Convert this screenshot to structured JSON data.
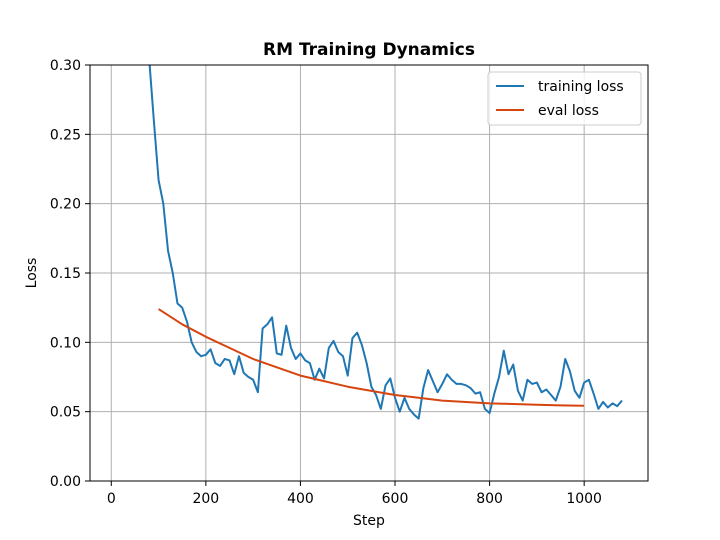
{
  "chart_data": {
    "type": "line",
    "title": "RM Training Dynamics",
    "xlabel": "Step",
    "ylabel": "Loss",
    "xlim": [
      -45,
      1135
    ],
    "ylim": [
      0.0,
      0.3
    ],
    "xticks": [
      0,
      200,
      400,
      600,
      800,
      1000
    ],
    "yticks": [
      0.0,
      0.05,
      0.1,
      0.15,
      0.2,
      0.25,
      0.3
    ],
    "xtick_labels": [
      "0",
      "200",
      "400",
      "600",
      "800",
      "1000"
    ],
    "ytick_labels": [
      "0.00",
      "0.05",
      "0.10",
      "0.15",
      "0.20",
      "0.25",
      "0.30"
    ],
    "grid": true,
    "legend_position": "top-right",
    "series": [
      {
        "name": "training loss",
        "color": "#1f77b4",
        "x": [
          80,
          90,
          100,
          110,
          120,
          130,
          140,
          150,
          160,
          170,
          180,
          190,
          200,
          210,
          220,
          230,
          240,
          250,
          260,
          270,
          280,
          290,
          300,
          310,
          320,
          330,
          340,
          350,
          360,
          370,
          380,
          390,
          400,
          410,
          420,
          430,
          440,
          450,
          460,
          470,
          480,
          490,
          500,
          510,
          520,
          530,
          540,
          550,
          560,
          570,
          580,
          590,
          600,
          610,
          620,
          630,
          640,
          650,
          660,
          670,
          680,
          690,
          700,
          710,
          720,
          730,
          740,
          750,
          760,
          770,
          780,
          790,
          800,
          810,
          820,
          830,
          840,
          850,
          860,
          870,
          880,
          890,
          900,
          910,
          920,
          930,
          940,
          950,
          960,
          970,
          980,
          990,
          1000,
          1010,
          1020,
          1030,
          1040,
          1050,
          1060,
          1070,
          1080
        ],
        "values": [
          0.305,
          0.26,
          0.217,
          0.2,
          0.166,
          0.15,
          0.128,
          0.125,
          0.115,
          0.1,
          0.093,
          0.09,
          0.091,
          0.095,
          0.085,
          0.083,
          0.088,
          0.087,
          0.077,
          0.09,
          0.078,
          0.075,
          0.073,
          0.064,
          0.11,
          0.113,
          0.118,
          0.092,
          0.091,
          0.112,
          0.096,
          0.088,
          0.092,
          0.087,
          0.085,
          0.073,
          0.081,
          0.074,
          0.096,
          0.101,
          0.093,
          0.09,
          0.076,
          0.103,
          0.107,
          0.098,
          0.085,
          0.068,
          0.062,
          0.052,
          0.069,
          0.074,
          0.06,
          0.05,
          0.06,
          0.052,
          0.048,
          0.045,
          0.067,
          0.08,
          0.072,
          0.064,
          0.07,
          0.077,
          0.073,
          0.07,
          0.07,
          0.069,
          0.067,
          0.063,
          0.064,
          0.052,
          0.049,
          0.063,
          0.075,
          0.094,
          0.077,
          0.084,
          0.065,
          0.058,
          0.073,
          0.07,
          0.071,
          0.064,
          0.066,
          0.062,
          0.058,
          0.068,
          0.088,
          0.079,
          0.065,
          0.06,
          0.071,
          0.073,
          0.063,
          0.052,
          0.057,
          0.053,
          0.056,
          0.054,
          0.058
        ]
      },
      {
        "name": "eval loss",
        "color": "#d6450f",
        "x": [
          100,
          150,
          200,
          250,
          300,
          350,
          400,
          450,
          500,
          550,
          600,
          650,
          700,
          750,
          800,
          850,
          900,
          950,
          1000
        ],
        "values": [
          0.124,
          0.113,
          0.104,
          0.096,
          0.088,
          0.082,
          0.076,
          0.072,
          0.068,
          0.065,
          0.062,
          0.06,
          0.058,
          0.057,
          0.056,
          0.0555,
          0.055,
          0.0545,
          0.0543
        ]
      }
    ]
  }
}
